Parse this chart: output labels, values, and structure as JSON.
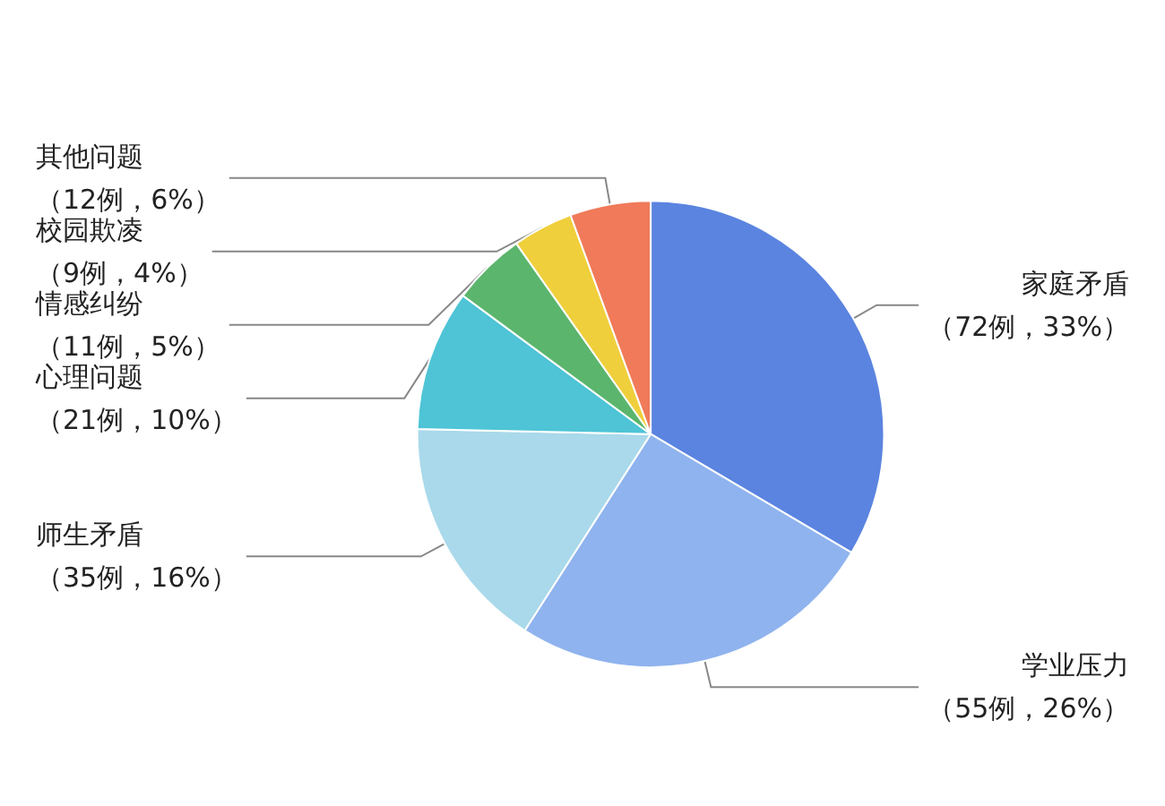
{
  "chart_data": {
    "type": "pie",
    "categories": [
      "家庭矛盾",
      "学业压力",
      "师生矛盾",
      "心理问题",
      "情感纠纷",
      "校园欺凌",
      "其他问题"
    ],
    "values": [
      72,
      55,
      35,
      21,
      11,
      9,
      12
    ],
    "value_labels": [
      "（72例，33%）",
      "（55例，26%）",
      "（35例，16%）",
      "（21例，10%）",
      "（11例，5%）",
      "（9例，4%）",
      "（12例，6%）"
    ],
    "colors": [
      "#5b84e0",
      "#8fb3ee",
      "#a9d9ea",
      "#4ec4d6",
      "#5bb56d",
      "#f0cf3c",
      "#f07a5a"
    ],
    "legend": false
  }
}
